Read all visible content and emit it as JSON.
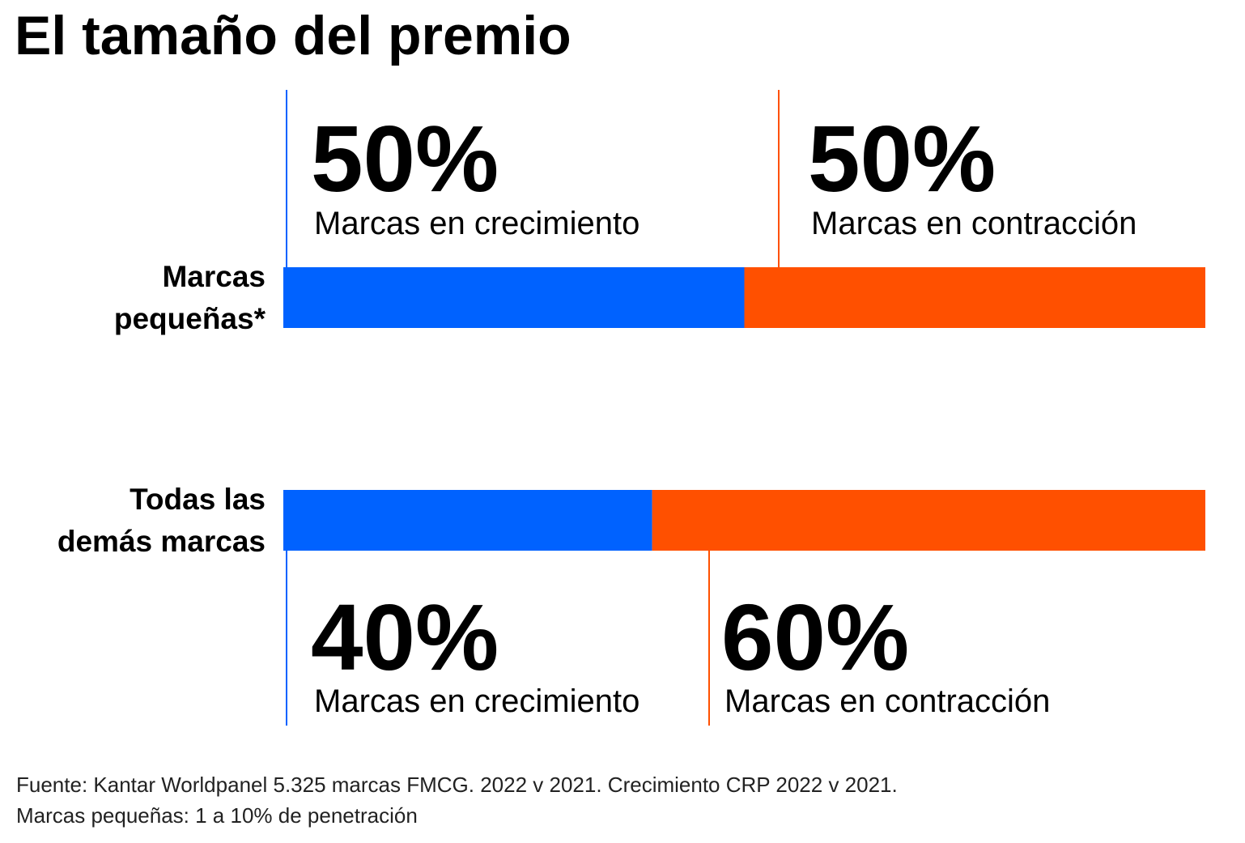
{
  "title": "El tamaño del premio",
  "colors": {
    "growing": "#0062ff",
    "shrinking": "#ff5000",
    "text": "#000000"
  },
  "chart_data": {
    "type": "bar",
    "stacked": true,
    "orientation": "horizontal",
    "unit": "%",
    "categories": [
      {
        "lines": [
          "Marcas",
          "pequeñas*"
        ]
      },
      {
        "lines": [
          "Todas las",
          "demás marcas"
        ]
      }
    ],
    "series": [
      {
        "name": "Marcas en crecimiento",
        "values": [
          50,
          40
        ],
        "labels": [
          "50%",
          "40%"
        ]
      },
      {
        "name": "Marcas en contracción",
        "values": [
          50,
          60
        ],
        "labels": [
          "50%",
          "60%"
        ]
      }
    ],
    "xlim": [
      0,
      100
    ]
  },
  "footnote": {
    "line1": "Fuente: Kantar Worldpanel 5.325 marcas FMCG. 2022 v 2021. Crecimiento CRP 2022 v 2021.",
    "line2": "Marcas pequeñas: 1 a 10% de penetración"
  }
}
